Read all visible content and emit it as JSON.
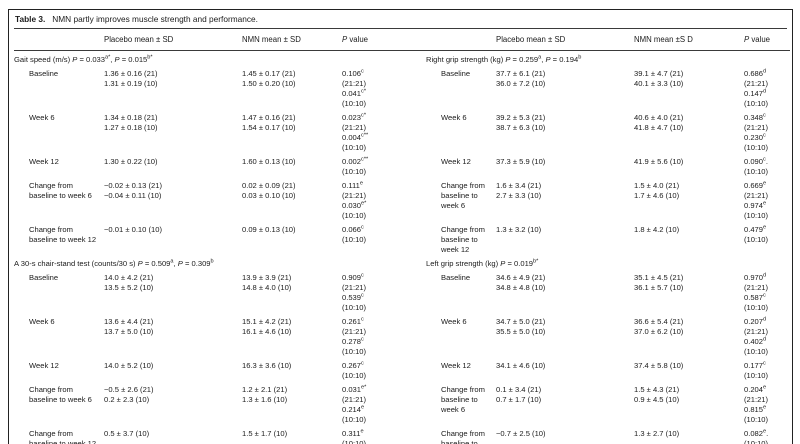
{
  "table": {
    "caption_label": "Table 3.",
    "caption_text": "NMN partly improves muscle strength and performance.",
    "left": {
      "col_placebo": "Placebo mean ± SD",
      "col_nmn": "NMN mean ± SD",
      "col_p": "P value",
      "sections": [
        {
          "title": "Gait speed (m/s) P = 0.033^a*, P = 0.015^b*",
          "rows": [
            {
              "label": "Baseline",
              "placebo": [
                "1.36 ± 0.16 (21)",
                "1.31 ± 0.19 (10)"
              ],
              "nmn": [
                "1.45 ± 0.17 (21)",
                "1.50 ± 0.20 (10)"
              ],
              "p": [
                "0.106^c",
                "(21:21)",
                "0.041^c*",
                "(10:10)"
              ]
            },
            {
              "label": "Week 6",
              "placebo": [
                "1.34 ± 0.18 (21)",
                "1.27 ± 0.18 (10)"
              ],
              "nmn": [
                "1.47 ± 0.16 (21)",
                "1.54 ± 0.17 (10)"
              ],
              "p": [
                "0.023^c*",
                "(21:21)",
                "0.004^c**",
                "(10:10)"
              ]
            },
            {
              "label": "Week 12",
              "placebo": [
                "1.30 ± 0.22 (10)"
              ],
              "nmn": [
                "1.60 ± 0.13 (10)"
              ],
              "p": [
                "0.002^c**",
                "(10:10)"
              ]
            },
            {
              "label": "Change from baseline to week 6",
              "placebo": [
                "−0.02 ± 0.13 (21)",
                "−0.04 ± 0.11 (10)"
              ],
              "nmn": [
                "0.02 ± 0.09 (21)",
                "0.03 ± 0.10 (10)"
              ],
              "p": [
                "0.111^e",
                "(21:21)",
                "0.030^e*",
                "(10:10)"
              ]
            },
            {
              "label": "Change from baseline to week 12",
              "placebo": [
                "−0.01 ± 0.10 (10)"
              ],
              "nmn": [
                "0.09 ± 0.13 (10)"
              ],
              "p": [
                "0.066^c",
                "(10:10)"
              ]
            }
          ]
        },
        {
          "title": "A 30-s chair-stand test (counts/30 s) P = 0.509^a, P = 0.309^b",
          "rows": [
            {
              "label": "Baseline",
              "placebo": [
                "14.0 ± 4.2 (21)",
                "13.5 ± 5.2 (10)"
              ],
              "nmn": [
                "13.9 ± 3.9 (21)",
                "14.8 ± 4.0 (10)"
              ],
              "p": [
                "0.909^c",
                "(21:21)",
                "0.539^c",
                "(10:10)"
              ]
            },
            {
              "label": "Week 6",
              "placebo": [
                "13.6 ± 4.4 (21)",
                "13.7 ± 5.0 (10)"
              ],
              "nmn": [
                "15.1 ± 4.2 (21)",
                "16.1 ± 4.6 (10)"
              ],
              "p": [
                "0.261^c",
                "(21:21)",
                "0.278^c",
                "(10:10)"
              ]
            },
            {
              "label": "Week 12",
              "placebo": [
                "14.0 ± 5.2 (10)"
              ],
              "nmn": [
                "16.3 ± 3.6 (10)"
              ],
              "p": [
                "0.267^c",
                "(10:10)"
              ]
            },
            {
              "label": "Change from baseline to week 6",
              "placebo": [
                "−0.5 ± 2.6 (21)",
                "0.2 ± 2.3 (10)"
              ],
              "nmn": [
                "1.2 ± 2.1 (21)",
                "1.3 ± 1.6 (10)"
              ],
              "p": [
                "0.031^e*",
                "(21:21)",
                "0.214^e",
                "(10:10)"
              ]
            },
            {
              "label": "Change from baseline to week 12",
              "placebo": [
                "0.5 ± 3.7 (10)"
              ],
              "nmn": [
                "1.5 ± 1.7 (10)"
              ],
              "p": [
                "0.311^e",
                "(10:10)"
              ]
            }
          ]
        }
      ]
    },
    "right": {
      "col_placebo": "Placebo mean ± SD",
      "col_nmn": "NMN mean ±S D",
      "col_p": "P value",
      "sections": [
        {
          "title": "Right grip strength (kg) P = 0.259^a, P = 0.194^b",
          "rows": [
            {
              "label": "Baseline",
              "placebo": [
                "37.7 ± 6.1 (21)",
                "36.0 ± 7.2 (10)"
              ],
              "nmn": [
                "39.1 ± 4.7 (21)",
                "40.1 ± 3.3 (10)"
              ],
              "p": [
                "0.686^d",
                "(21:21)",
                "0.147^d",
                "(10:10)"
              ]
            },
            {
              "label": "Week 6",
              "placebo": [
                "39.2 ± 5.3 (21)",
                "38.7 ± 6.3 (10)"
              ],
              "nmn": [
                "40.6 ± 4.0 (21)",
                "41.8 ± 4.7 (10)"
              ],
              "p": [
                "0.348^c",
                "(21:21)",
                "0.230^c",
                "(10:10)"
              ]
            },
            {
              "label": "Week 12",
              "placebo": [
                "37.3 ± 5.9 (10)"
              ],
              "nmn": [
                "41.9 ± 5.6 (10)"
              ],
              "p": [
                "0.090^c.",
                "(10:10)"
              ]
            },
            {
              "label": "Change from baseline to week 6",
              "placebo": [
                "1.6 ± 3.4 (21)",
                "2.7 ± 3.3 (10)"
              ],
              "nmn": [
                "1.5 ± 4.0 (21)",
                "1.7 ± 4.6 (10)"
              ],
              "p": [
                "0.669^e",
                "(21:21)",
                "0.974^e",
                "(10:10)"
              ]
            },
            {
              "label": "Change from baseline to week 12",
              "placebo": [
                "1.3 ± 3.2 (10)"
              ],
              "nmn": [
                "1.8 ± 4.2 (10)"
              ],
              "p": [
                "0.479^e",
                "(10:10)"
              ]
            }
          ]
        },
        {
          "title": "Left grip strength (kg) P = 0.019^b*",
          "rows": [
            {
              "label": "Baseline",
              "placebo": [
                "34.6 ± 4.9 (21)",
                "34.8 ± 4.8 (10)"
              ],
              "nmn": [
                "35.1 ± 4.5 (21)",
                "36.1 ± 5.7 (10)"
              ],
              "p": [
                "0.970^d",
                "(21:21)",
                "0.587^c",
                "(10:10)"
              ]
            },
            {
              "label": "Week 6",
              "placebo": [
                "34.7 ± 5.0 (21)",
                "35.5 ± 5.0 (10)"
              ],
              "nmn": [
                "36.6 ± 5.4 (21)",
                "37.0 ± 6.2 (10)"
              ],
              "p": [
                "0.207^d",
                "(21:21)",
                "0.402^d",
                "(10:10)"
              ]
            },
            {
              "label": "Week 12",
              "placebo": [
                "34.1 ± 4.6 (10)"
              ],
              "nmn": [
                "37.4 ± 5.8 (10)"
              ],
              "p": [
                "0.177^c",
                "(10:10)"
              ]
            },
            {
              "label": "Change from baseline to week 6",
              "placebo": [
                "0.1 ± 3.4 (21)",
                "0.7 ± 1.7 (10)"
              ],
              "nmn": [
                "1.5 ± 4.3 (21)",
                "0.9 ± 4.5 (10)"
              ],
              "p": [
                "0.204^e",
                "(21:21)",
                "0.815^e",
                "(10:10)"
              ]
            },
            {
              "label": "Change from baseline to week 12",
              "placebo": [
                "−0.7 ± 2.5 (10)"
              ],
              "nmn": [
                "1.3 ± 2.7 (10)"
              ],
              "p": [
                "0.082^e.",
                "(10:10)"
              ]
            }
          ]
        }
      ]
    }
  }
}
